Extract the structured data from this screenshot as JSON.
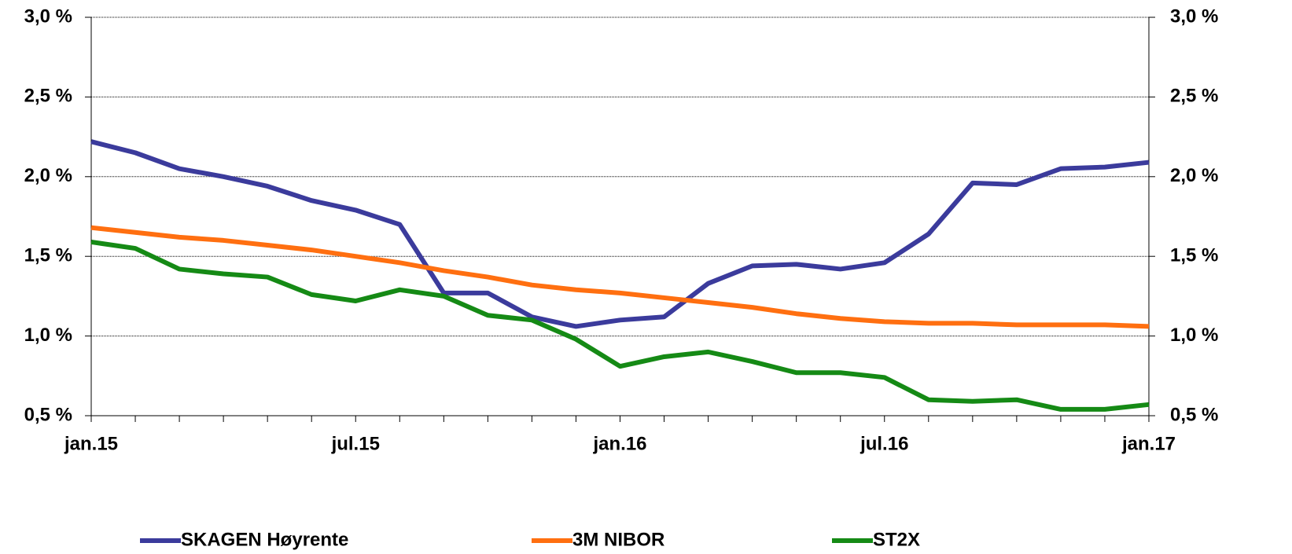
{
  "chart_data": {
    "type": "line",
    "categories": [
      "jan.15",
      null,
      null,
      null,
      null,
      null,
      "jul.15",
      null,
      null,
      null,
      null,
      null,
      "jan.16",
      null,
      null,
      null,
      null,
      null,
      "jul.16",
      null,
      null,
      null,
      null,
      null,
      "jan.17"
    ],
    "series": [
      {
        "name": "SKAGEN Høyrente",
        "color": "#3b3b9c",
        "values": [
          2.22,
          2.15,
          2.05,
          2.0,
          1.94,
          1.85,
          1.79,
          1.7,
          1.27,
          1.27,
          1.12,
          1.06,
          1.1,
          1.12,
          1.33,
          1.44,
          1.45,
          1.42,
          1.46,
          1.64,
          1.96,
          1.95,
          2.05,
          2.06,
          2.09
        ]
      },
      {
        "name": "3M NIBOR",
        "color": "#ff6f10",
        "values": [
          1.68,
          1.65,
          1.62,
          1.6,
          1.57,
          1.54,
          1.5,
          1.46,
          1.41,
          1.37,
          1.32,
          1.29,
          1.27,
          1.24,
          1.21,
          1.18,
          1.14,
          1.11,
          1.09,
          1.08,
          1.08,
          1.07,
          1.07,
          1.07,
          1.06
        ]
      },
      {
        "name": "ST2X",
        "color": "#158a15",
        "values": [
          1.59,
          1.55,
          1.42,
          1.39,
          1.37,
          1.26,
          1.22,
          1.29,
          1.25,
          1.13,
          1.1,
          0.98,
          0.81,
          0.87,
          0.9,
          0.84,
          0.77,
          0.77,
          0.74,
          0.6,
          0.59,
          0.6,
          0.54,
          0.54,
          0.57
        ]
      }
    ],
    "ylim": [
      0.5,
      3.0
    ],
    "yticks": [
      {
        "value": 0.5,
        "label": "0,5 %"
      },
      {
        "value": 1.0,
        "label": "1,0 %"
      },
      {
        "value": 1.5,
        "label": "1,5 %"
      },
      {
        "value": 2.0,
        "label": "2,0 %"
      },
      {
        "value": 2.5,
        "label": "2,5 %"
      },
      {
        "value": 3.0,
        "label": "3,0 %"
      }
    ],
    "y2lim": [
      0.5,
      3.0
    ],
    "y2ticks": [
      {
        "value": 0.5,
        "label": "0,5 %"
      },
      {
        "value": 1.0,
        "label": "1,0 %"
      },
      {
        "value": 1.5,
        "label": "1,5 %"
      },
      {
        "value": 2.0,
        "label": "2,0 %"
      },
      {
        "value": 2.5,
        "label": "2,5 %"
      },
      {
        "value": 3.0,
        "label": "3,0 %"
      }
    ],
    "grid": true,
    "legend": "bottom"
  }
}
